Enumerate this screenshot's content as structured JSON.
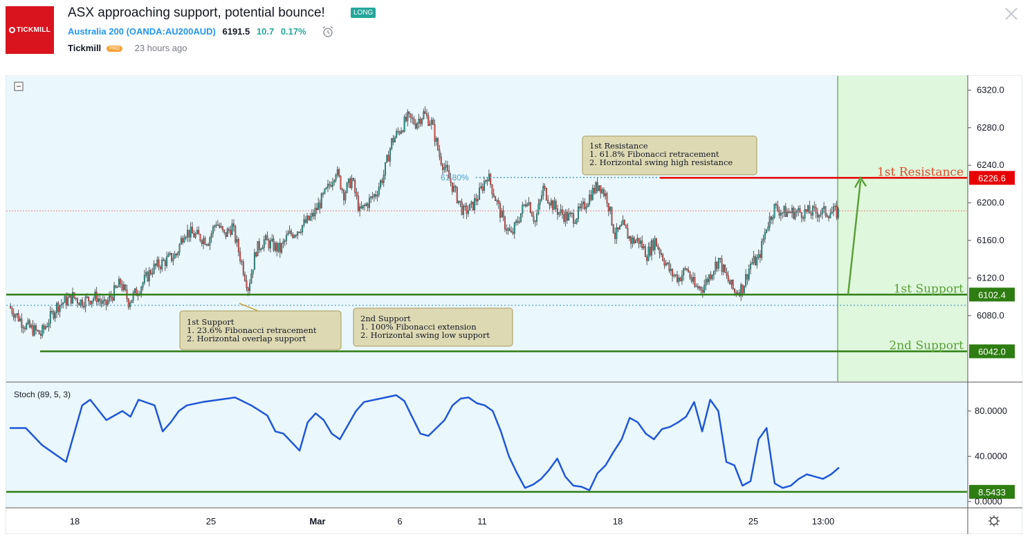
{
  "header": {
    "logo_text": "TICKMILL",
    "title": "ASX approaching support, potential bounce!",
    "badge": "LONG",
    "symbol_name": "Australia 200",
    "symbol_code": "(OANDA:AU200AUD)",
    "price": "6191.5",
    "change": "10.7",
    "change_pct": "0.17%",
    "author": "Tickmill",
    "author_badge": "PRO",
    "time_ago": "23 hours ago"
  },
  "colors": {
    "up_candle": "#26a69a",
    "down_candle": "#ef5350",
    "support_line": "#2e7d12",
    "resistance_line": "#e60000",
    "stoch_line": "#1e56d8",
    "plot_bg": "#eaf7fd",
    "projection_bg": "#dff7dc"
  },
  "chart_data": [
    {
      "type": "candlestick",
      "title": "Australia 200 (OANDA:AU200AUD)",
      "ylim": [
        6010,
        6335
      ],
      "y_ticks": [
        "6320.0",
        "6280.0",
        "6240.0",
        "6200.0",
        "6160.0",
        "6120.0",
        "6080.0"
      ],
      "x_ticks": [
        "18",
        "25",
        "Mar",
        "6",
        "11",
        "18",
        "25",
        "13:00"
      ],
      "last_price": 6191.5,
      "price_path": [
        [
          0,
          6090
        ],
        [
          2,
          6070
        ],
        [
          4,
          6060
        ],
        [
          6,
          6090
        ],
        [
          8,
          6100
        ],
        [
          9,
          6095
        ],
        [
          11,
          6100
        ],
        [
          12,
          6090
        ],
        [
          14,
          6115
        ],
        [
          15,
          6095
        ],
        [
          16,
          6105
        ],
        [
          18,
          6130
        ],
        [
          20,
          6140
        ],
        [
          21,
          6145
        ],
        [
          22,
          6170
        ],
        [
          25,
          6160
        ],
        [
          26,
          6180
        ],
        [
          27,
          6165
        ],
        [
          28,
          6175
        ],
        [
          30,
          6110
        ],
        [
          31,
          6150
        ],
        [
          32,
          6160
        ],
        [
          34,
          6150
        ],
        [
          35,
          6165
        ],
        [
          36,
          6170
        ],
        [
          38,
          6185
        ],
        [
          40,
          6215
        ],
        [
          41,
          6235
        ],
        [
          42,
          6210
        ],
        [
          43,
          6225
        ],
        [
          44,
          6190
        ],
        [
          46,
          6210
        ],
        [
          47,
          6230
        ],
        [
          48,
          6265
        ],
        [
          50,
          6290
        ],
        [
          51,
          6285
        ],
        [
          52,
          6295
        ],
        [
          53,
          6285
        ],
        [
          54,
          6250
        ],
        [
          56,
          6210
        ],
        [
          57,
          6190
        ],
        [
          58,
          6195
        ],
        [
          59,
          6210
        ],
        [
          60,
          6230
        ],
        [
          61,
          6205
        ],
        [
          62,
          6180
        ],
        [
          63,
          6165
        ],
        [
          64,
          6185
        ],
        [
          65,
          6205
        ],
        [
          66,
          6180
        ],
        [
          67,
          6215
        ],
        [
          68,
          6200
        ],
        [
          69,
          6190
        ],
        [
          70,
          6185
        ],
        [
          71,
          6185
        ],
        [
          72,
          6195
        ],
        [
          73,
          6210
        ],
        [
          74,
          6220
        ],
        [
          75,
          6205
        ],
        [
          76,
          6165
        ],
        [
          77,
          6175
        ],
        [
          78,
          6160
        ],
        [
          79,
          6160
        ],
        [
          80,
          6145
        ],
        [
          81,
          6160
        ],
        [
          83,
          6125
        ],
        [
          84,
          6120
        ],
        [
          85,
          6130
        ],
        [
          86,
          6110
        ],
        [
          87,
          6110
        ],
        [
          88,
          6125
        ],
        [
          89,
          6140
        ],
        [
          90,
          6120
        ],
        [
          91,
          6105
        ],
        [
          92,
          6110
        ],
        [
          93,
          6135
        ],
        [
          94,
          6140
        ],
        [
          95,
          6175
        ],
        [
          96,
          6195
        ],
        [
          97,
          6190
        ]
      ],
      "levels": [
        {
          "name": "1st Resistance",
          "value": 6226.6,
          "label": "6226.6"
        },
        {
          "name": "1st Support",
          "value": 6102.4,
          "label": "6102.4"
        },
        {
          "name": "2nd Support",
          "value": 6042.0,
          "label": "6042.0"
        }
      ],
      "fib_label": "61.80%",
      "fib_level": 6227,
      "fib_support_dotted": 6091,
      "annotations": [
        {
          "title": "1st Resistance",
          "lines": [
            "1. 61.8% Fibonacci retracement",
            "2. Horizontal swing high resistance"
          ]
        },
        {
          "title": "1st Support",
          "lines": [
            "1. 23.6% Fibonacci retracement",
            "2. Horizontal overlap support"
          ]
        },
        {
          "title": "2nd Support",
          "lines": [
            "1. 100% Fibonacci extension",
            "2. Horizontal swing low support"
          ]
        }
      ],
      "projection_from": 6102.4,
      "projection_to": 6226.6
    },
    {
      "type": "line",
      "title": "Stoch (89, 5, 3)",
      "ylim": [
        -5,
        105
      ],
      "y_ticks": [
        "80.0000",
        "40.0000",
        "0.0000"
      ],
      "level": {
        "value": 8.5433,
        "label": "8.5433"
      },
      "values": [
        [
          0,
          65
        ],
        [
          2,
          65
        ],
        [
          4,
          50
        ],
        [
          5,
          45
        ],
        [
          7,
          35
        ],
        [
          8,
          60
        ],
        [
          9,
          85
        ],
        [
          10,
          90
        ],
        [
          12,
          72
        ],
        [
          14,
          80
        ],
        [
          15,
          75
        ],
        [
          16,
          90
        ],
        [
          18,
          85
        ],
        [
          19,
          62
        ],
        [
          20,
          70
        ],
        [
          21,
          80
        ],
        [
          22,
          85
        ],
        [
          24,
          88
        ],
        [
          26,
          90
        ],
        [
          28,
          92
        ],
        [
          30,
          85
        ],
        [
          32,
          76
        ],
        [
          33,
          62
        ],
        [
          34,
          60
        ],
        [
          36,
          45
        ],
        [
          37,
          70
        ],
        [
          38,
          78
        ],
        [
          39,
          72
        ],
        [
          40,
          60
        ],
        [
          41,
          55
        ],
        [
          43,
          80
        ],
        [
          44,
          88
        ],
        [
          46,
          91
        ],
        [
          48,
          94
        ],
        [
          49,
          89
        ],
        [
          51,
          60
        ],
        [
          52,
          58
        ],
        [
          53,
          65
        ],
        [
          54,
          72
        ],
        [
          55,
          85
        ],
        [
          56,
          91
        ],
        [
          57,
          92
        ],
        [
          58,
          87
        ],
        [
          59,
          85
        ],
        [
          60,
          80
        ],
        [
          61,
          62
        ],
        [
          62,
          40
        ],
        [
          63,
          25
        ],
        [
          64,
          12
        ],
        [
          65,
          15
        ],
        [
          66,
          20
        ],
        [
          67,
          28
        ],
        [
          68,
          38
        ],
        [
          69,
          22
        ],
        [
          70,
          14
        ],
        [
          71,
          13
        ],
        [
          72,
          10
        ],
        [
          73,
          25
        ],
        [
          74,
          32
        ],
        [
          75,
          44
        ],
        [
          76,
          55
        ],
        [
          77,
          74
        ],
        [
          78,
          70
        ],
        [
          79,
          60
        ],
        [
          80,
          55
        ],
        [
          81,
          64
        ],
        [
          82,
          66
        ],
        [
          83,
          70
        ],
        [
          84,
          75
        ],
        [
          85,
          88
        ],
        [
          86,
          62
        ],
        [
          87,
          90
        ],
        [
          88,
          80
        ],
        [
          89,
          35
        ],
        [
          90,
          32
        ],
        [
          91,
          14
        ],
        [
          92,
          18
        ],
        [
          93,
          55
        ],
        [
          94,
          65
        ],
        [
          95,
          16
        ],
        [
          96,
          12
        ],
        [
          97,
          14
        ],
        [
          98,
          20
        ],
        [
          99,
          24
        ],
        [
          100,
          22
        ],
        [
          101,
          20
        ],
        [
          102,
          24
        ],
        [
          103,
          30
        ]
      ]
    }
  ],
  "annotation_labels": {
    "res_title": "1st Resistance",
    "res_line1": "1. 61.8% Fibonacci retracement",
    "res_line2": "2. Horizontal swing high resistance",
    "s1_title": "1st Support",
    "s1_line1": "1. 23.6% Fibonacci retracement",
    "s1_line2": "2. Horizontal overlap support",
    "s2_title": "2nd Support",
    "s2_line1": "1. 100% Fibonacci extension",
    "s2_line2": "2. Horizontal swing low support"
  }
}
